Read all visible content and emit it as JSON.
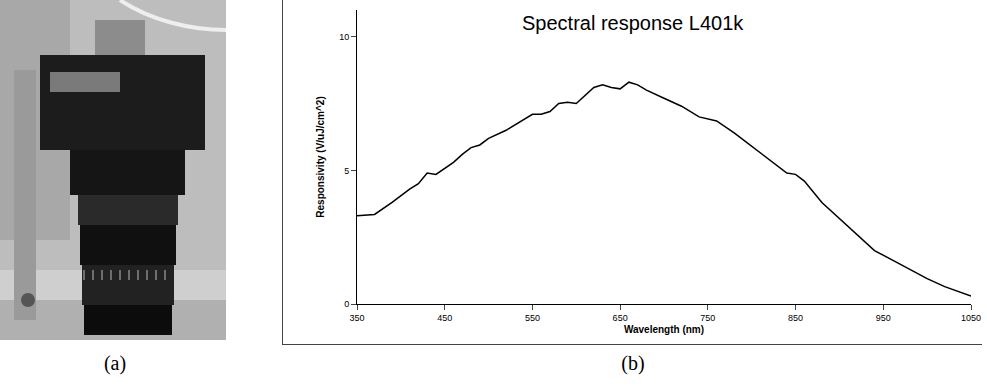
{
  "chart_data": {
    "type": "line",
    "title": "Spectral response L401k",
    "xlabel": "Wavelength (nm)",
    "ylabel": "Responsivity (V/uJ/cm^2)",
    "x": [
      350,
      370,
      390,
      410,
      420,
      430,
      440,
      460,
      470,
      480,
      490,
      500,
      520,
      540,
      550,
      560,
      570,
      580,
      590,
      600,
      610,
      620,
      630,
      640,
      650,
      660,
      670,
      680,
      700,
      720,
      740,
      760,
      780,
      800,
      820,
      840,
      850,
      860,
      880,
      900,
      920,
      940,
      960,
      980,
      1000,
      1020,
      1050
    ],
    "values": [
      3.3,
      3.35,
      3.8,
      4.3,
      4.5,
      4.9,
      4.85,
      5.3,
      5.6,
      5.85,
      5.95,
      6.2,
      6.5,
      6.9,
      7.1,
      7.1,
      7.2,
      7.5,
      7.55,
      7.5,
      7.8,
      8.1,
      8.2,
      8.1,
      8.05,
      8.3,
      8.2,
      8.0,
      7.7,
      7.4,
      7.0,
      6.85,
      6.4,
      5.9,
      5.4,
      4.9,
      4.85,
      4.6,
      3.8,
      3.2,
      2.6,
      2.0,
      1.65,
      1.3,
      0.95,
      0.65,
      0.3
    ],
    "color": "#000000",
    "xlim": [
      350,
      1050
    ],
    "xticks": [
      350,
      450,
      550,
      650,
      750,
      850,
      950,
      1050
    ],
    "ylim": [
      0,
      11
    ],
    "yticks": [
      0,
      5,
      10
    ],
    "grid": false
  },
  "panel_labels": [
    "(a)",
    "(b)"
  ]
}
